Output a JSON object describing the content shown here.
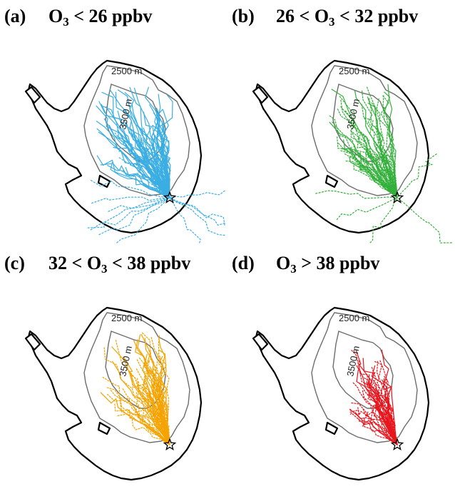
{
  "panels": [
    {
      "letter": "(a)",
      "label_pre": "O",
      "label_sub": "3",
      "label_post": " < 26 ppbv",
      "color": "#3aaee3",
      "style": "blue"
    },
    {
      "letter": "(b)",
      "label_pre": "26 < O",
      "label_sub": "3",
      "label_post": " < 32 ppbv",
      "color": "#33b03a",
      "style": "green"
    },
    {
      "letter": "(c)",
      "label_pre": "32 < O",
      "label_sub": "3",
      "label_post": " < 38 ppbv",
      "color": "#f5a300",
      "style": "orange"
    },
    {
      "letter": "(d)",
      "label_pre": "O",
      "label_sub": "3",
      "label_post": " > 38 ppbv",
      "color": "#e8141c",
      "style": "red"
    }
  ],
  "contours": {
    "outer": "2500 m",
    "inner": "3500 m"
  },
  "map": {
    "coastline_color": "#000000",
    "contour_color": "#6d6d6d",
    "station_marker": "star"
  }
}
